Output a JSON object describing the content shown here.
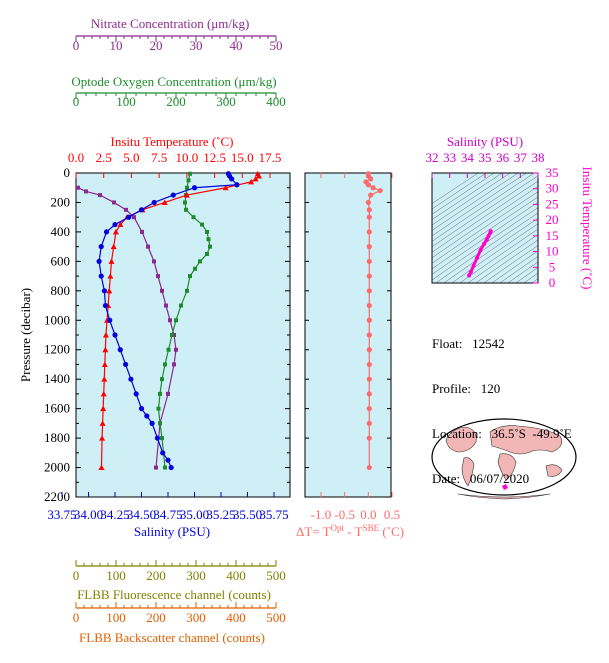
{
  "colors": {
    "nitrate": "#8b2a8e",
    "oxygen": "#1e8c2c",
    "temperature": "#ff0000",
    "salinity": "#0000dd",
    "fluorescence": "#808000",
    "backscatter": "#e06000",
    "delta_t": "#ff6a6a",
    "ts_curve": "#ff00cc",
    "ts_title": "#cc00cc",
    "panel_bg": "#cfeff7",
    "land": "#f2b6b6"
  },
  "axes": {
    "nitrate": {
      "label": "Nitrate Concentration (μm/kg)",
      "ticks": [
        "0",
        "10",
        "20",
        "30",
        "40",
        "50"
      ],
      "range": [
        0,
        50
      ]
    },
    "oxygen": {
      "label": "Optode Oxygen Concentration (μm/kg)",
      "ticks": [
        "0",
        "100",
        "200",
        "300",
        "400"
      ],
      "range": [
        0,
        400
      ]
    },
    "temperature": {
      "label": "Insitu Temperature (˚C)",
      "ticks": [
        "0.0",
        "2.5",
        "5.0",
        "7.5",
        "10.0",
        "12.5",
        "15.0",
        "17.5"
      ],
      "range": [
        0,
        17.5
      ]
    },
    "salinity": {
      "label": "Salinity (PSU)",
      "ticks": [
        "33.75",
        "34.00",
        "34.25",
        "34.50",
        "34.75",
        "35.00",
        "35.25",
        "35.50",
        "35.75"
      ],
      "range": [
        33.75,
        35.75
      ]
    },
    "pressure": {
      "label": "Pressure (decibar)",
      "ticks": [
        "0",
        "200",
        "400",
        "600",
        "800",
        "1000",
        "1200",
        "1400",
        "1600",
        "1800",
        "2000",
        "2200"
      ],
      "range": [
        0,
        2200
      ]
    },
    "fluorescence": {
      "label": "FLBB Fluorescence channel (counts)",
      "ticks": [
        "0",
        "100",
        "200",
        "300",
        "400",
        "500"
      ],
      "range": [
        0,
        500
      ]
    },
    "backscatter": {
      "label": "FLBB Backscatter channel (counts)",
      "ticks": [
        "0",
        "100",
        "200",
        "300",
        "400",
        "500"
      ],
      "range": [
        0,
        500
      ]
    },
    "delta_t": {
      "label_main": "ΔT= T",
      "label_sup1": "Opt",
      "label_mid": " - T",
      "label_sup2": "SBE",
      "label_unit": " (˚C)",
      "ticks": [
        "-1.0",
        "-0.5",
        "0.0",
        "0.5"
      ],
      "range": [
        -1.0,
        0.5
      ]
    },
    "ts_salinity": {
      "label": "Salinity (PSU)",
      "ticks": [
        "32",
        "33",
        "34",
        "35",
        "36",
        "37",
        "38"
      ],
      "range": [
        32,
        38
      ]
    },
    "ts_temperature": {
      "label": "Insitu Temperature (˚C)",
      "ticks": [
        "0",
        "5",
        "10",
        "15",
        "20",
        "25",
        "30",
        "35"
      ],
      "range": [
        0,
        35
      ]
    }
  },
  "info": {
    "float": "Float:   12542",
    "profile": "Profile:   120",
    "location": "Location:   36.5˚S  -49.9˚E",
    "date": "Date:   06/07/2020"
  },
  "chart_data": [
    {
      "type": "line",
      "name": "Insitu Temperature",
      "y_axis": "Pressure (decibar)",
      "x": [
        16.4,
        16.5,
        16.2,
        15.8,
        13.5,
        10.0,
        8.0,
        6.0,
        4.6,
        4.0,
        3.6,
        3.4,
        3.2,
        3.1,
        3.0,
        2.9,
        2.8,
        2.7,
        2.65,
        2.6,
        2.55,
        2.5,
        2.45,
        2.4,
        2.35,
        2.3
      ],
      "y": [
        5,
        20,
        40,
        60,
        100,
        150,
        200,
        250,
        300,
        350,
        400,
        500,
        600,
        700,
        800,
        900,
        1000,
        1100,
        1200,
        1300,
        1400,
        1500,
        1600,
        1700,
        1800,
        2000
      ]
    },
    {
      "type": "line",
      "name": "Salinity",
      "y_axis": "Pressure (decibar)",
      "x": [
        35.32,
        35.33,
        35.35,
        35.4,
        35.0,
        34.8,
        34.62,
        34.5,
        34.38,
        34.25,
        34.17,
        34.12,
        34.1,
        34.12,
        34.15,
        34.16,
        34.2,
        34.25,
        34.3,
        34.35,
        34.4,
        34.45,
        34.5,
        34.55,
        34.6,
        34.65,
        34.7,
        34.75,
        34.78
      ],
      "y": [
        5,
        20,
        40,
        80,
        100,
        150,
        200,
        250,
        300,
        350,
        400,
        500,
        600,
        700,
        800,
        900,
        1000,
        1100,
        1200,
        1300,
        1400,
        1500,
        1600,
        1650,
        1700,
        1800,
        1900,
        1950,
        2000
      ]
    },
    {
      "type": "line",
      "name": "Optode Oxygen",
      "y_axis": "Pressure (decibar)",
      "x": [
        228,
        225,
        222,
        220,
        218,
        220,
        235,
        252,
        262,
        265,
        268,
        262,
        248,
        238,
        228,
        222,
        210,
        200,
        192,
        185,
        178,
        172,
        168,
        165,
        168,
        172,
        178
      ],
      "y": [
        5,
        50,
        100,
        150,
        200,
        250,
        300,
        350,
        400,
        450,
        500,
        550,
        600,
        650,
        700,
        800,
        900,
        1000,
        1100,
        1200,
        1300,
        1400,
        1500,
        1600,
        1700,
        1800,
        2000
      ]
    },
    {
      "type": "line",
      "name": "Nitrate",
      "y_axis": "Pressure (decibar)",
      "x": [
        0.5,
        2.5,
        6.0,
        9.5,
        12.5,
        14.5,
        16.5,
        18.0,
        19.5,
        20.5,
        21.5,
        22.5,
        23.5,
        24.5,
        25.0,
        24.5,
        23.0,
        21.0,
        20.0
      ],
      "y": [
        100,
        125,
        150,
        200,
        250,
        300,
        400,
        500,
        600,
        700,
        800,
        900,
        1000,
        1100,
        1200,
        1300,
        1500,
        1700,
        2000
      ]
    },
    {
      "type": "line",
      "name": "Delta T",
      "y_axis": "Pressure (decibar)",
      "x": [
        0.0,
        0.0,
        0.05,
        -0.05,
        0.0,
        0.1,
        0.25,
        0.05,
        0.0,
        0.02,
        0.02,
        0.02,
        0.02,
        0.02,
        0.02,
        0.02,
        0.02,
        0.02,
        0.02,
        0.02,
        0.02,
        0.02,
        0.02,
        0.02,
        0.02,
        0.02,
        0.02
      ],
      "y": [
        5,
        20,
        40,
        60,
        80,
        100,
        120,
        150,
        200,
        250,
        300,
        400,
        500,
        600,
        700,
        800,
        900,
        1000,
        1100,
        1200,
        1300,
        1400,
        1500,
        1600,
        1700,
        1800,
        2000
      ]
    },
    {
      "type": "line",
      "name": "TS diagram",
      "x": [
        34.1,
        34.2,
        34.35,
        34.55,
        34.75,
        34.95,
        35.1,
        35.2,
        35.3,
        35.32
      ],
      "y": [
        2.4,
        3.5,
        5.5,
        8.0,
        10.5,
        12.5,
        13.8,
        15.0,
        16.0,
        16.5
      ]
    }
  ]
}
